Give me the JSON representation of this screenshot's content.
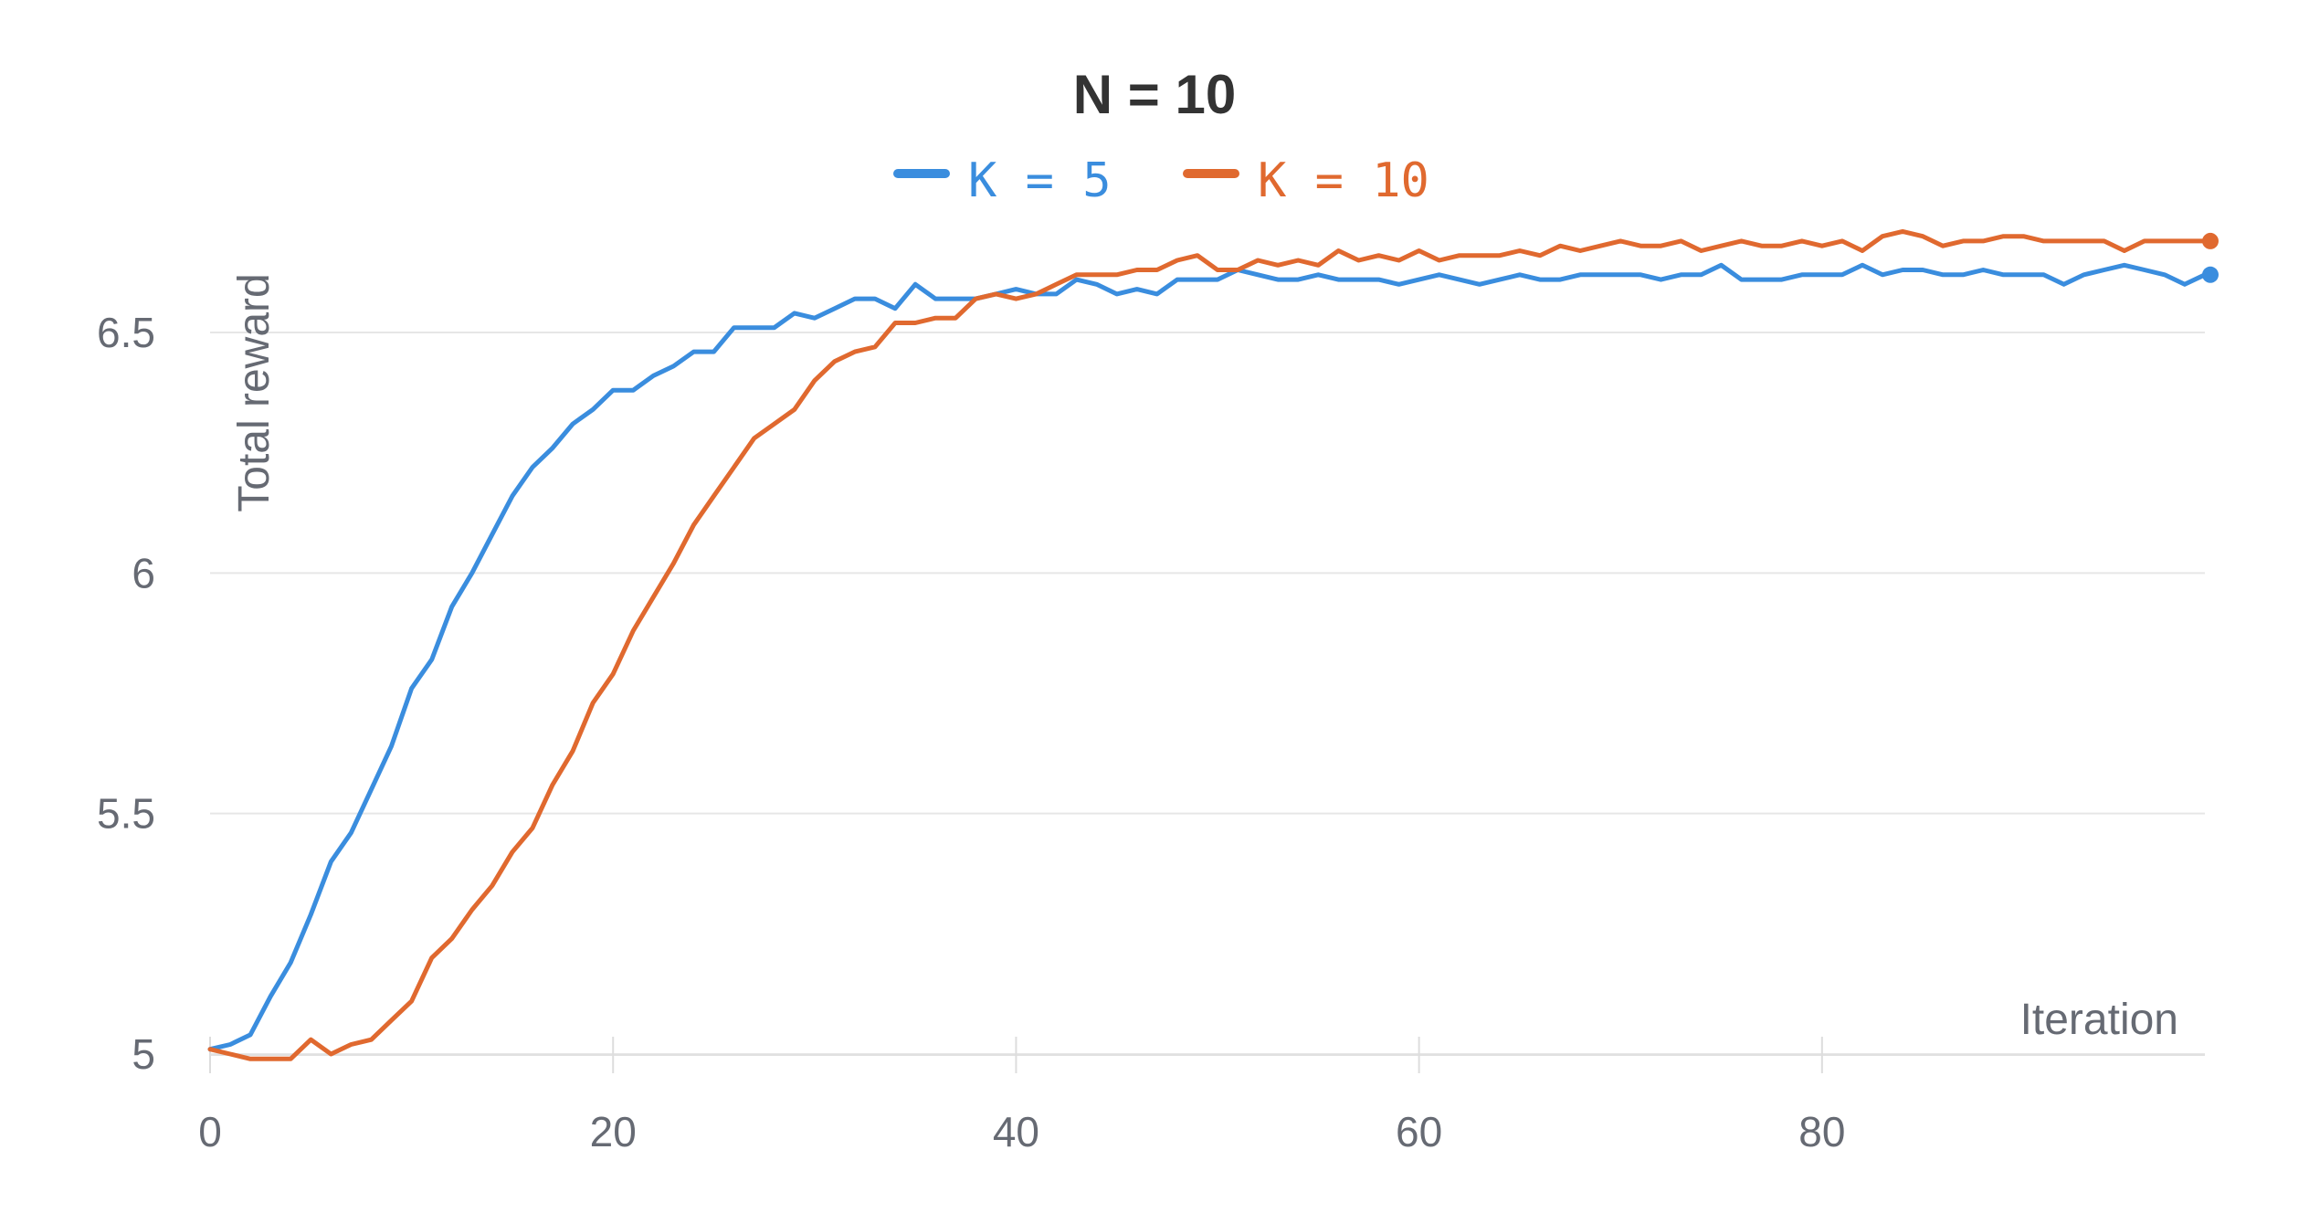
{
  "chart_data": {
    "type": "line",
    "title": "N = 10",
    "xlabel": "Iteration",
    "ylabel": "Total reward",
    "xlim": [
      0,
      99
    ],
    "ylim": [
      4.95,
      6.75
    ],
    "x_ticks": [
      0,
      20,
      40,
      60,
      80
    ],
    "x_tick_labels": [
      "0",
      "20",
      "40",
      "60",
      "80"
    ],
    "y_ticks": [
      5,
      5.5,
      6,
      6.5
    ],
    "y_tick_labels": [
      "5",
      "5.5",
      "6",
      "6.5"
    ],
    "grid": "horizontal",
    "legend_position": "top-center",
    "x": [
      0,
      1,
      2,
      3,
      4,
      5,
      6,
      7,
      8,
      9,
      10,
      11,
      12,
      13,
      14,
      15,
      16,
      17,
      18,
      19,
      20,
      21,
      22,
      23,
      24,
      25,
      26,
      27,
      28,
      29,
      30,
      31,
      32,
      33,
      34,
      35,
      36,
      37,
      38,
      39,
      40,
      41,
      42,
      43,
      44,
      45,
      46,
      47,
      48,
      49,
      50,
      51,
      52,
      53,
      54,
      55,
      56,
      57,
      58,
      59,
      60,
      61,
      62,
      63,
      64,
      65,
      66,
      67,
      68,
      69,
      70,
      71,
      72,
      73,
      74,
      75,
      76,
      77,
      78,
      79,
      80,
      81,
      82,
      83,
      84,
      85,
      86,
      87,
      88,
      89,
      90,
      91,
      92,
      93,
      94,
      95,
      96,
      97,
      98,
      99
    ],
    "series": [
      {
        "name": "K = 5",
        "color": "#3a8dde",
        "values": [
          5.01,
          5.02,
          5.04,
          5.12,
          5.19,
          5.29,
          5.4,
          5.46,
          5.55,
          5.64,
          5.76,
          5.82,
          5.93,
          6.0,
          6.08,
          6.16,
          6.22,
          6.26,
          6.31,
          6.34,
          6.38,
          6.38,
          6.41,
          6.43,
          6.46,
          6.46,
          6.51,
          6.51,
          6.51,
          6.54,
          6.53,
          6.55,
          6.57,
          6.57,
          6.55,
          6.6,
          6.57,
          6.57,
          6.57,
          6.58,
          6.59,
          6.58,
          6.58,
          6.61,
          6.6,
          6.58,
          6.59,
          6.58,
          6.61,
          6.61,
          6.61,
          6.63,
          6.62,
          6.61,
          6.61,
          6.62,
          6.61,
          6.61,
          6.61,
          6.6,
          6.61,
          6.62,
          6.61,
          6.6,
          6.61,
          6.62,
          6.61,
          6.61,
          6.62,
          6.62,
          6.62,
          6.62,
          6.61,
          6.62,
          6.62,
          6.64,
          6.61,
          6.61,
          6.61,
          6.62,
          6.62,
          6.62,
          6.64,
          6.62,
          6.63,
          6.63,
          6.62,
          6.62,
          6.63,
          6.62,
          6.62,
          6.62,
          6.6,
          6.62,
          6.63,
          6.64,
          6.63,
          6.62,
          6.6,
          6.62
        ]
      },
      {
        "name": "K = 10",
        "color": "#e0692f",
        "values": [
          5.01,
          5.0,
          4.99,
          4.99,
          4.99,
          5.03,
          5.0,
          5.02,
          5.03,
          5.07,
          5.11,
          5.2,
          5.24,
          5.3,
          5.35,
          5.42,
          5.47,
          5.56,
          5.63,
          5.73,
          5.79,
          5.88,
          5.95,
          6.02,
          6.1,
          6.16,
          6.22,
          6.28,
          6.31,
          6.34,
          6.4,
          6.44,
          6.46,
          6.47,
          6.52,
          6.52,
          6.53,
          6.53,
          6.57,
          6.58,
          6.57,
          6.58,
          6.6,
          6.62,
          6.62,
          6.62,
          6.63,
          6.63,
          6.65,
          6.66,
          6.63,
          6.63,
          6.65,
          6.64,
          6.65,
          6.64,
          6.67,
          6.65,
          6.66,
          6.65,
          6.67,
          6.65,
          6.66,
          6.66,
          6.66,
          6.67,
          6.66,
          6.68,
          6.67,
          6.68,
          6.69,
          6.68,
          6.68,
          6.69,
          6.67,
          6.68,
          6.69,
          6.68,
          6.68,
          6.69,
          6.68,
          6.69,
          6.67,
          6.7,
          6.71,
          6.7,
          6.68,
          6.69,
          6.69,
          6.7,
          6.7,
          6.69,
          6.69,
          6.69,
          6.69,
          6.67,
          6.69,
          6.69,
          6.69,
          6.69
        ]
      }
    ]
  }
}
